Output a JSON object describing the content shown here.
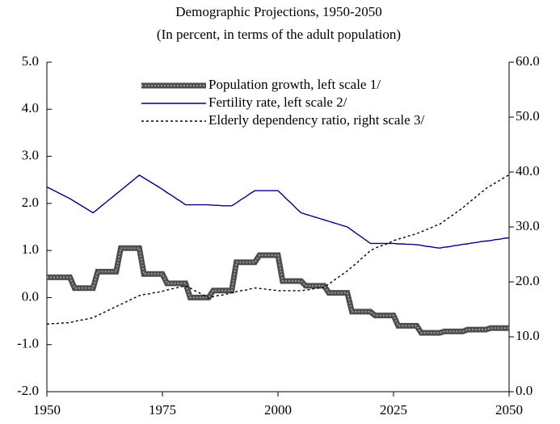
{
  "chart_data": {
    "type": "line",
    "title": "Demographic Projections, 1950-2050",
    "subtitle": "(In percent, in terms of the adult population)",
    "x": [
      1950,
      1951,
      1952,
      1953,
      1954,
      1955,
      1956,
      1957,
      1958,
      1959,
      1960,
      1961,
      1962,
      1963,
      1964,
      1965,
      1966,
      1967,
      1968,
      1969,
      1970,
      1971,
      1972,
      1973,
      1974,
      1975,
      1976,
      1977,
      1978,
      1979,
      1980,
      1981,
      1982,
      1983,
      1984,
      1985,
      1986,
      1987,
      1988,
      1989,
      1990,
      1991,
      1992,
      1993,
      1994,
      1995,
      1996,
      1997,
      1998,
      1999,
      2000,
      2001,
      2002,
      2003,
      2004,
      2005,
      2006,
      2007,
      2008,
      2009,
      2010,
      2011,
      2012,
      2013,
      2014,
      2015,
      2016,
      2017,
      2018,
      2019,
      2020,
      2021,
      2022,
      2023,
      2024,
      2025,
      2026,
      2027,
      2028,
      2029,
      2030,
      2031,
      2032,
      2033,
      2034,
      2035,
      2036,
      2037,
      2038,
      2039,
      2040,
      2041,
      2042,
      2043,
      2044,
      2045,
      2046,
      2047,
      2048,
      2049,
      2050
    ],
    "series": [
      {
        "name": "Population growth, left scale 1/",
        "color": "#4d4d4d",
        "values": [
          0.43,
          0.43,
          0.43,
          0.43,
          0.43,
          0.43,
          0.2,
          0.2,
          0.2,
          0.2,
          0.2,
          0.55,
          0.55,
          0.55,
          0.55,
          0.55,
          1.05,
          1.05,
          1.05,
          1.05,
          1.05,
          0.5,
          0.5,
          0.5,
          0.5,
          0.5,
          0.3,
          0.3,
          0.3,
          0.3,
          0.3,
          0.0,
          0.0,
          0.0,
          0.0,
          0.0,
          0.15,
          0.15,
          0.15,
          0.15,
          0.15,
          0.75,
          0.75,
          0.75,
          0.75,
          0.75,
          0.9,
          0.9,
          0.9,
          0.9,
          0.9,
          0.35,
          0.35,
          0.35,
          0.35,
          0.35,
          0.25,
          0.25,
          0.25,
          0.25,
          0.25,
          0.1,
          0.1,
          0.1,
          0.1,
          0.1,
          -0.3,
          -0.3,
          -0.3,
          -0.3,
          -0.3,
          -0.38,
          -0.38,
          -0.38,
          -0.38,
          -0.38,
          -0.6,
          -0.6,
          -0.6,
          -0.6,
          -0.6,
          -0.75,
          -0.75,
          -0.75,
          -0.75,
          -0.75,
          -0.72,
          -0.72,
          -0.72,
          -0.72,
          -0.72,
          -0.68,
          -0.68,
          -0.68,
          -0.68,
          -0.68,
          -0.65,
          -0.65,
          -0.65,
          -0.65,
          -0.65
        ]
      },
      {
        "name": "Fertility rate, left scale 2/",
        "color": "#000080",
        "values": [
          2.35,
          2.3,
          2.25,
          2.2,
          2.15,
          2.1,
          2.04,
          1.98,
          1.92,
          1.86,
          1.8,
          1.88,
          1.96,
          2.04,
          2.12,
          2.2,
          2.28,
          2.36,
          2.44,
          2.52,
          2.6,
          2.54,
          2.48,
          2.42,
          2.36,
          2.3,
          2.23,
          2.17,
          2.1,
          2.04,
          1.97,
          1.97,
          1.97,
          1.97,
          1.97,
          1.97,
          1.96,
          1.96,
          1.95,
          1.95,
          1.95,
          2.01,
          2.08,
          2.14,
          2.21,
          2.27,
          2.27,
          2.27,
          2.27,
          2.27,
          2.27,
          2.18,
          2.08,
          1.99,
          1.89,
          1.8,
          1.77,
          1.74,
          1.71,
          1.68,
          1.65,
          1.62,
          1.59,
          1.56,
          1.53,
          1.5,
          1.43,
          1.36,
          1.29,
          1.22,
          1.15,
          1.15,
          1.15,
          1.15,
          1.15,
          1.15,
          1.14,
          1.14,
          1.13,
          1.13,
          1.12,
          1.11,
          1.09,
          1.08,
          1.06,
          1.05,
          1.07,
          1.08,
          1.1,
          1.11,
          1.13,
          1.14,
          1.16,
          1.17,
          1.19,
          1.2,
          1.21,
          1.23,
          1.24,
          1.26,
          1.27
        ]
      },
      {
        "name": "Elderly dependency ratio, right scale 3/",
        "color": "#000000",
        "axis": "y2",
        "dashed": true,
        "values": [
          12.3,
          12.4,
          12.4,
          12.5,
          12.5,
          12.6,
          12.8,
          13.0,
          13.1,
          13.3,
          13.5,
          13.9,
          14.3,
          14.7,
          15.1,
          15.5,
          15.9,
          16.3,
          16.7,
          17.1,
          17.5,
          17.7,
          17.8,
          18.0,
          18.1,
          18.3,
          18.5,
          18.7,
          18.9,
          19.1,
          19.3,
          18.9,
          18.4,
          18.0,
          17.5,
          17.1,
          17.3,
          17.5,
          17.6,
          17.8,
          18.0,
          18.2,
          18.4,
          18.5,
          18.7,
          18.9,
          18.8,
          18.7,
          18.6,
          18.5,
          18.4,
          18.4,
          18.4,
          18.4,
          18.4,
          18.4,
          18.5,
          18.6,
          18.8,
          18.9,
          19.0,
          19.6,
          20.2,
          20.8,
          21.4,
          22.0,
          22.7,
          23.4,
          24.2,
          24.9,
          25.7,
          26.1,
          26.5,
          26.7,
          27.1,
          27.5,
          27.8,
          28.0,
          28.3,
          28.5,
          28.8,
          29.1,
          29.5,
          29.8,
          30.2,
          30.5,
          31.1,
          31.7,
          32.3,
          32.9,
          33.5,
          34.2,
          34.9,
          35.6,
          36.3,
          37.0,
          37.5,
          38.0,
          38.5,
          39.0,
          39.5
        ]
      }
    ],
    "xlim": [
      1950,
      2050
    ],
    "xticks": [
      1950,
      1975,
      2000,
      2025,
      2050
    ],
    "ylim": [
      -2,
      5
    ],
    "yticks": [
      {
        "value": -2,
        "label": "-2.0"
      },
      {
        "value": -1,
        "label": "-1.0"
      },
      {
        "value": 0,
        "label": "0.0"
      },
      {
        "value": 1,
        "label": "1.0"
      },
      {
        "value": 2,
        "label": "2.0"
      },
      {
        "value": 3,
        "label": "3.0"
      },
      {
        "value": 4,
        "label": "4.0"
      },
      {
        "value": 5,
        "label": "5.0"
      }
    ],
    "y2lim": [
      0,
      60
    ],
    "y2ticks": [
      {
        "value": 0,
        "label": "0.0"
      },
      {
        "value": 10,
        "label": "10.0"
      },
      {
        "value": 20,
        "label": "20.0"
      },
      {
        "value": 30,
        "label": "30.0"
      },
      {
        "value": 40,
        "label": "40.0"
      },
      {
        "value": 50,
        "label": "50.0"
      },
      {
        "value": 60,
        "label": "60.0"
      }
    ],
    "legend": "top"
  }
}
